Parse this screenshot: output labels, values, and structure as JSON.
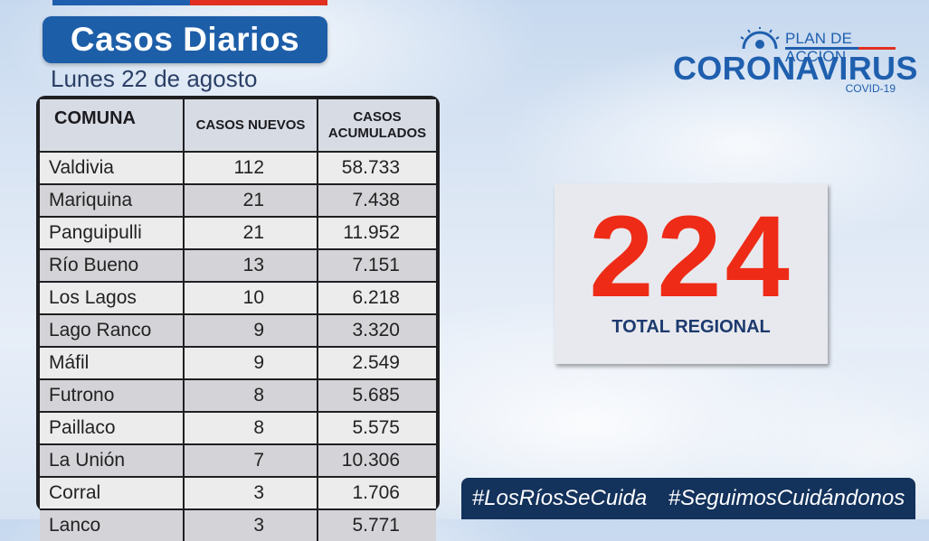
{
  "header": {
    "title": "Casos Diarios",
    "date": "Lunes 22 de agosto"
  },
  "table": {
    "columns": [
      "COMUNA",
      "CASOS NUEVOS",
      "CASOS",
      "ACUMULADOS"
    ],
    "rows": [
      {
        "comuna": "Valdivia",
        "nuevos": "112",
        "acumulados": "58.733"
      },
      {
        "comuna": "Mariquina",
        "nuevos": "21",
        "acumulados": "7.438"
      },
      {
        "comuna": "Panguipulli",
        "nuevos": "21",
        "acumulados": "11.952"
      },
      {
        "comuna": "Río Bueno",
        "nuevos": "13",
        "acumulados": "7.151"
      },
      {
        "comuna": "Los Lagos",
        "nuevos": "10",
        "acumulados": "6.218"
      },
      {
        "comuna": "Lago Ranco",
        "nuevos": "9",
        "acumulados": "3.320"
      },
      {
        "comuna": "Máfil",
        "nuevos": "9",
        "acumulados": "2.549"
      },
      {
        "comuna": "Futrono",
        "nuevos": "8",
        "acumulados": "5.685"
      },
      {
        "comuna": "Paillaco",
        "nuevos": "8",
        "acumulados": "5.575"
      },
      {
        "comuna": "La Unión",
        "nuevos": "7",
        "acumulados": "10.306"
      },
      {
        "comuna": "Corral",
        "nuevos": "3",
        "acumulados": "1.706"
      },
      {
        "comuna": "Lanco",
        "nuevos": "3",
        "acumulados": "5.771"
      }
    ]
  },
  "logo": {
    "plan": "PLAN DE ACCIÓN",
    "name": "CORONAVIRUS",
    "sub": "COVID-19"
  },
  "total": {
    "value": "224",
    "label": "TOTAL REGIONAL"
  },
  "hashtags": [
    "#LosRíosSeCuida",
    "#SeguimosCuidándonos"
  ],
  "colors": {
    "brand_blue": "#1d5ea8",
    "brand_red": "#e1301f",
    "total_red": "#ee2b16",
    "banner_navy": "#13325c"
  }
}
